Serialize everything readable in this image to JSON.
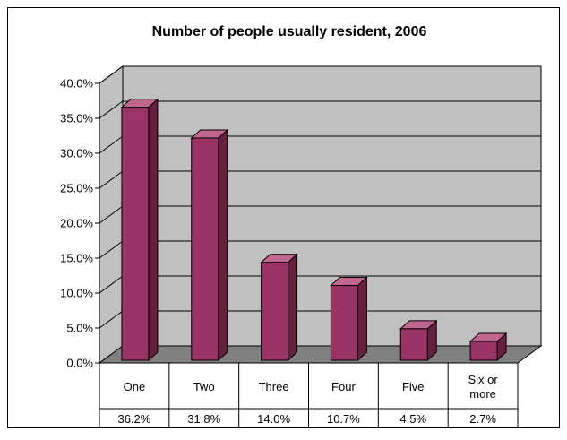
{
  "chart_data": {
    "type": "bar",
    "title": "Number of people usually resident, 2006",
    "xlabel": "",
    "ylabel": "",
    "categories": [
      "One",
      "Two",
      "Three",
      "Four",
      "Five",
      "Six or more"
    ],
    "values": [
      36.2,
      31.8,
      14.0,
      10.7,
      4.5,
      2.7
    ],
    "value_labels": [
      "36.2%",
      "31.8%",
      "14.0%",
      "10.7%",
      "4.5%",
      "2.7%"
    ],
    "ylim": [
      0,
      40
    ],
    "yticks": [
      "0.0%",
      "5.0%",
      "10.0%",
      "15.0%",
      "20.0%",
      "25.0%",
      "30.0%",
      "35.0%",
      "40.0%"
    ],
    "grid": true,
    "legend": "none",
    "data_table": true,
    "style": "3d-column",
    "colors": {
      "bar_front": "#993366",
      "bar_top": "#C0668F",
      "bar_side": "#66203F",
      "wall": "#C0C0C0",
      "floor": "#808080",
      "grid": "#000000"
    }
  }
}
